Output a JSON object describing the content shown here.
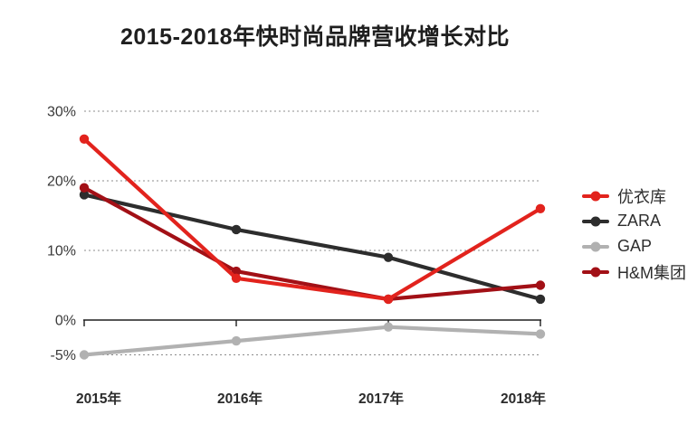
{
  "title": "2015-2018年快时尚品牌营收增长对比",
  "chart_data": {
    "type": "line",
    "title": "2015-2018年快时尚品牌营收增长对比",
    "categories": [
      "2015年",
      "2016年",
      "2017年",
      "2018年"
    ],
    "series": [
      {
        "name": "优衣库",
        "color": "#e2231d",
        "values": [
          26,
          6,
          3,
          16
        ]
      },
      {
        "name": "ZARA",
        "color": "#2d2d2d",
        "values": [
          18,
          13,
          9,
          3
        ]
      },
      {
        "name": "GAP",
        "color": "#b1b1b1",
        "values": [
          -5,
          -3,
          -1,
          -2
        ]
      },
      {
        "name": "H&M集团",
        "color": "#a21016",
        "values": [
          19,
          7,
          3,
          5
        ]
      }
    ],
    "unit": "%",
    "y_ticks": [
      {
        "label": "30%",
        "value": 30
      },
      {
        "label": "20%",
        "value": 20
      },
      {
        "label": "10%",
        "value": 10
      },
      {
        "label": "0%",
        "value": 0
      },
      {
        "label": "-5%",
        "value": -5
      }
    ],
    "ylim": [
      -5,
      30
    ],
    "grid": "dashed-horizontal",
    "legend_position": "right",
    "draw_order": [
      "GAP",
      "ZARA",
      "H&M集团",
      "优衣库"
    ]
  },
  "legend": {
    "items": [
      "优衣库",
      "ZARA",
      "GAP",
      "H&M集团"
    ]
  }
}
